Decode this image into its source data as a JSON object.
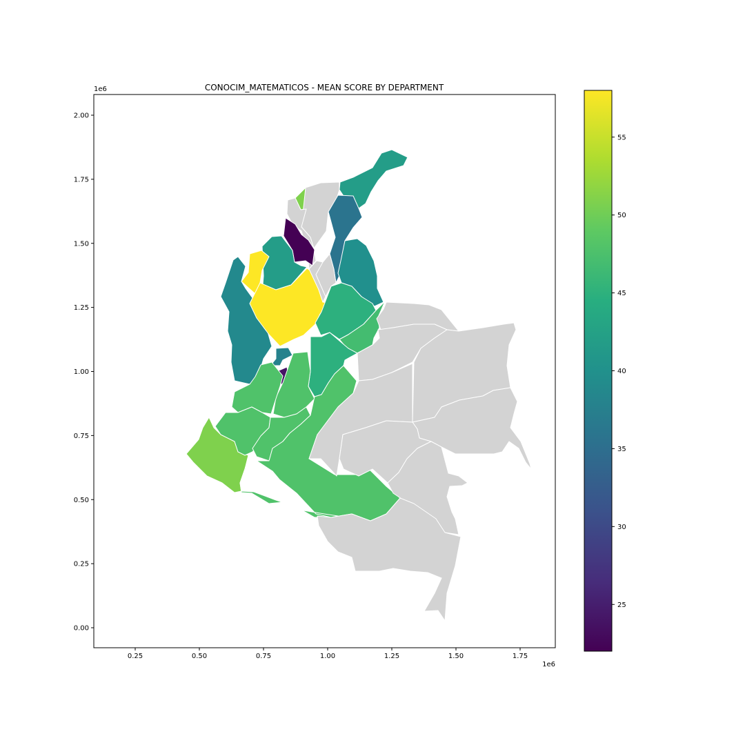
{
  "title": "CONOCIM_MATEMATICOS - MEAN SCORE BY DEPARTMENT",
  "x_axis": {
    "ticks": [
      "0.25",
      "0.50",
      "0.75",
      "1.00",
      "1.25",
      "1.50",
      "1.75"
    ],
    "offset_label": "1e6"
  },
  "y_axis": {
    "ticks": [
      "0.00",
      "0.25",
      "0.50",
      "0.75",
      "1.00",
      "1.25",
      "1.50",
      "1.75",
      "2.00"
    ],
    "offset_label": "1e6"
  },
  "colorbar": {
    "ticks": [
      "25",
      "30",
      "35",
      "40",
      "45",
      "50",
      "55"
    ],
    "colormap": "viridis"
  },
  "colors": {
    "no_data": "#d3d3d3",
    "border": "#ffffff",
    "frame": "#000000"
  },
  "chart_data": {
    "type": "choropleth",
    "title": "CONOCIM_MATEMATICOS - MEAN SCORE BY DEPARTMENT",
    "x_range": [
      80000,
      1880000
    ],
    "y_range": [
      -80000,
      2080000
    ],
    "color_range": [
      22,
      58
    ],
    "colormap": "viridis",
    "grid": false,
    "value_estimates_by_color": [
      {
        "color": "purple-dark",
        "value": 22
      },
      {
        "color": "teal-blue",
        "value": 36
      },
      {
        "color": "teal",
        "value": 39
      },
      {
        "color": "green-teal",
        "value": 42
      },
      {
        "color": "green-mid",
        "value": 46
      },
      {
        "color": "green",
        "value": 48
      },
      {
        "color": "light-green",
        "value": 51
      },
      {
        "color": "yellow",
        "value": 58
      }
    ],
    "regions": [
      {
        "value": 42
      },
      {
        "value": 51
      },
      {
        "value": null
      },
      {
        "value": 36
      },
      {
        "value": null
      },
      {
        "value": 22
      },
      {
        "value": 40
      },
      {
        "value": 42
      },
      {
        "value": 58
      },
      {
        "value": 39
      },
      {
        "value": 58
      },
      {
        "value": null
      },
      {
        "value": 45
      },
      {
        "value": 47
      },
      {
        "value": 38
      },
      {
        "value": 24
      },
      {
        "value": 45
      },
      {
        "value": 48
      },
      {
        "value": 48
      },
      {
        "value": 51
      },
      {
        "value": 48
      },
      {
        "value": 48
      },
      {
        "value": 48
      },
      {
        "value": null
      },
      {
        "value": null
      },
      {
        "value": null
      },
      {
        "value": null
      },
      {
        "value": null
      },
      {
        "value": null
      },
      {
        "value": null
      },
      {
        "value": null
      },
      {
        "value": null
      }
    ]
  }
}
